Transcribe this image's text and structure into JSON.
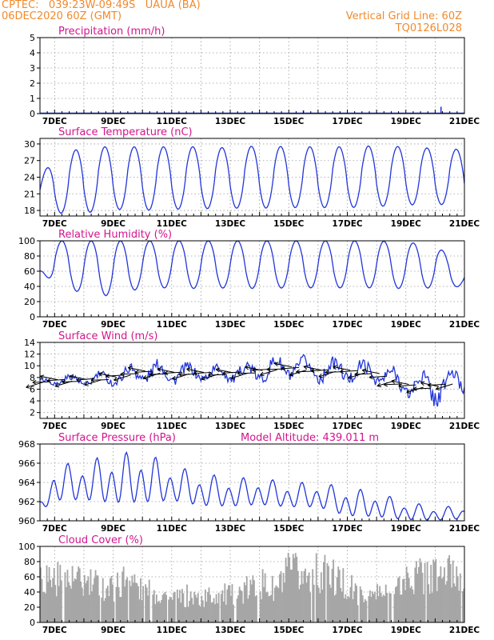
{
  "header": {
    "left_line1": "CPTEC:   039:23W-09:49S   UAUA (BA)",
    "left_line2": "06DEC2020 60Z (GMT)",
    "right_line1": "Vertical Grid Line: 60Z",
    "right_line2": "TQ0126L028"
  },
  "colors": {
    "header": "#f08a2c",
    "title": "#d1158c",
    "line": "#2236d8",
    "cloud": "#a6a6a6"
  },
  "chart_data": [
    {
      "id": "precip",
      "type": "bar",
      "title": "Precipitation (mm/h)",
      "ylim": [
        0,
        5
      ],
      "yticks": [
        0,
        1,
        2,
        3,
        4,
        5
      ],
      "x_range_days": [
        6.5,
        21
      ],
      "x_tick_labels": [
        "7DEC",
        "9DEC",
        "11DEC",
        "13DEC",
        "15DEC",
        "17DEC",
        "19DEC",
        "21DEC"
      ],
      "x_tick_days": [
        7,
        9,
        11,
        13,
        15,
        17,
        19,
        21
      ],
      "grid": true,
      "events": [
        {
          "x": 6.8,
          "y": 0.05
        },
        {
          "x": 8.2,
          "y": 0.03
        },
        {
          "x": 9.5,
          "y": 0.04
        },
        {
          "x": 11.3,
          "y": 0.03
        },
        {
          "x": 13.1,
          "y": 0.05
        },
        {
          "x": 14.6,
          "y": 0.06
        },
        {
          "x": 15.5,
          "y": 0.22
        },
        {
          "x": 16.4,
          "y": 0.04
        },
        {
          "x": 18.3,
          "y": 0.05
        },
        {
          "x": 19.4,
          "y": 0.06
        },
        {
          "x": 20.2,
          "y": 0.45
        },
        {
          "x": 20.6,
          "y": 0.05
        }
      ]
    },
    {
      "id": "temp",
      "type": "line",
      "title": "Surface Temperature (nC)",
      "ylim": [
        17,
        31
      ],
      "yticks": [
        18,
        21,
        24,
        27,
        30
      ],
      "x_range_days": [
        6.5,
        21
      ],
      "x_tick_labels": [
        "7DEC",
        "9DEC",
        "11DEC",
        "13DEC",
        "15DEC",
        "17DEC",
        "19DEC",
        "21DEC"
      ],
      "x_tick_days": [
        7,
        9,
        11,
        13,
        15,
        17,
        19,
        21
      ],
      "grid": true,
      "daily_cycle": {
        "days": [
          6.5,
          7,
          8,
          9,
          10,
          11,
          12,
          13,
          14,
          15,
          16,
          17,
          18,
          19,
          20,
          21
        ],
        "max": [
          24.0,
          27.5,
          29.5,
          29.5,
          29.5,
          29.5,
          29.5,
          29.3,
          29.7,
          29.5,
          29.5,
          29.5,
          29.7,
          29.5,
          29.2,
          29.0
        ],
        "min": [
          17.8,
          17.5,
          17.5,
          18.2,
          18.0,
          18.2,
          18.3,
          18.4,
          18.4,
          18.5,
          18.5,
          18.5,
          18.7,
          19.0,
          19.0,
          19.2
        ]
      }
    },
    {
      "id": "rh",
      "type": "line",
      "title": "Relative Humidity (%)",
      "ylim": [
        0,
        100
      ],
      "yticks": [
        0,
        20,
        40,
        60,
        80,
        100
      ],
      "x_range_days": [
        6.5,
        21
      ],
      "x_tick_labels": [
        "7DEC",
        "9DEC",
        "11DEC",
        "13DEC",
        "15DEC",
        "17DEC",
        "19DEC",
        "21DEC"
      ],
      "x_tick_days": [
        7,
        9,
        11,
        13,
        15,
        17,
        19,
        21
      ],
      "grid": true,
      "daily_cycle": {
        "days": [
          6.5,
          7,
          8,
          9,
          10,
          11,
          12,
          13,
          14,
          15,
          16,
          17,
          18,
          19,
          20,
          21
        ],
        "max": [
          60,
          100,
          100,
          100,
          100,
          100,
          100,
          100,
          100,
          100,
          100,
          100,
          100,
          98,
          95,
          64
        ],
        "min": [
          60,
          44,
          30,
          27,
          38,
          38,
          37,
          38,
          37,
          38,
          38,
          38,
          38,
          37,
          38,
          40
        ]
      }
    },
    {
      "id": "wind",
      "type": "line",
      "title": "Surface Wind (m/s)",
      "ylim": [
        1,
        14
      ],
      "yticks": [
        2,
        4,
        6,
        8,
        10,
        12,
        14
      ],
      "x_range_days": [
        6.5,
        21
      ],
      "x_tick_labels": [
        "7DEC",
        "9DEC",
        "11DEC",
        "13DEC",
        "15DEC",
        "17DEC",
        "19DEC",
        "21DEC"
      ],
      "x_tick_days": [
        7,
        9,
        11,
        13,
        15,
        17,
        19,
        21
      ],
      "grid": true,
      "vectors_note_direction": "winds from the east (arrows pointing left)",
      "daily_cycle": {
        "days": [
          6.5,
          7,
          8,
          9,
          10,
          11,
          12,
          13,
          14,
          15,
          16,
          17,
          18,
          19,
          20,
          21
        ],
        "max": [
          8.0,
          8.5,
          9.0,
          9.5,
          11.5,
          11.0,
          10.5,
          10.5,
          11.5,
          12.5,
          11.5,
          11.8,
          11.0,
          9.5,
          10.0,
          10.5
        ],
        "min": [
          6.5,
          6.5,
          6.0,
          6.2,
          6.5,
          6.5,
          7.0,
          6.8,
          6.5,
          7.0,
          6.8,
          6.5,
          6.5,
          4.0,
          2.5,
          4.5
        ]
      }
    },
    {
      "id": "pres",
      "type": "line",
      "title": "Surface Pressure (hPa)",
      "annotation": "Model Altitude: 439.011 m",
      "ylim": [
        960,
        968
      ],
      "yticks": [
        960,
        962,
        964,
        966,
        968
      ],
      "x_range_days": [
        6.5,
        21
      ],
      "x_tick_labels": [
        "7DEC",
        "9DEC",
        "11DEC",
        "13DEC",
        "15DEC",
        "17DEC",
        "19DEC",
        "21DEC"
      ],
      "x_tick_days": [
        7,
        9,
        11,
        13,
        15,
        17,
        19,
        21
      ],
      "grid": true,
      "daily_cycle": {
        "days": [
          6.5,
          7,
          8,
          9,
          10,
          11,
          12,
          13,
          14,
          15,
          16,
          17,
          18,
          19,
          20,
          21
        ],
        "max": [
          962.0,
          965.8,
          966.2,
          967.0,
          967.3,
          965.8,
          965.0,
          964.5,
          964.5,
          964.0,
          964.0,
          963.5,
          963.0,
          962.0,
          961.5,
          961.5
        ],
        "min": [
          960.8,
          961.5,
          961.5,
          961.0,
          961.0,
          961.5,
          961.0,
          961.0,
          961.2,
          961.0,
          961.0,
          960.0,
          960.0,
          959.8,
          959.8,
          960.0
        ]
      }
    },
    {
      "id": "cloud",
      "type": "bar",
      "title": "Cloud Cover (%)",
      "ylim": [
        0,
        100
      ],
      "yticks": [
        0,
        20,
        40,
        60,
        80,
        100
      ],
      "x_range_days": [
        6.5,
        21
      ],
      "x_tick_labels": [
        "7DEC",
        "9DEC",
        "11DEC",
        "13DEC",
        "15DEC",
        "17DEC",
        "19DEC",
        "21DEC"
      ],
      "x_tick_days": [
        7,
        9,
        11,
        13,
        15,
        17,
        19,
        21
      ],
      "grid": true,
      "envelope": {
        "days": [
          6.5,
          7.0,
          7.5,
          8.0,
          8.5,
          9.0,
          9.5,
          10.0,
          10.5,
          11.0,
          11.5,
          12.0,
          12.5,
          13.0,
          13.5,
          14.0,
          14.5,
          15.0,
          15.5,
          16.0,
          16.5,
          17.0,
          17.5,
          18.0,
          18.5,
          19.0,
          19.5,
          20.0,
          20.5,
          21.0
        ],
        "values": [
          95,
          85,
          80,
          75,
          70,
          65,
          90,
          55,
          60,
          40,
          50,
          45,
          55,
          50,
          60,
          75,
          60,
          95,
          90,
          92,
          85,
          70,
          45,
          55,
          50,
          85,
          92,
          90,
          95,
          95
        ]
      }
    }
  ]
}
